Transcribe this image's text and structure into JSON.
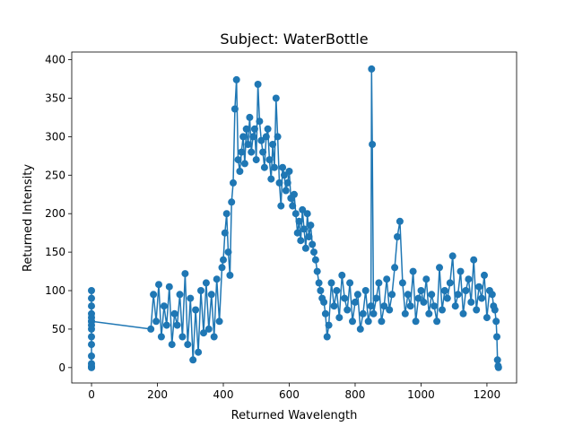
{
  "chart_data": {
    "type": "line",
    "title": "Subject: WaterBottle",
    "xlabel": "Returned Wavelength",
    "ylabel": "Returned Intensity",
    "xlim": [
      -60,
      1290
    ],
    "ylim": [
      -20,
      410
    ],
    "xticks": [
      0,
      200,
      400,
      600,
      800,
      1000,
      1200
    ],
    "yticks": [
      0,
      50,
      100,
      150,
      200,
      250,
      300,
      350,
      400
    ],
    "grid": false,
    "legend": "none",
    "marker": "circle",
    "series": [
      {
        "color": "#1f77b4",
        "x": [
          0,
          0,
          0,
          0,
          0,
          0,
          0,
          0,
          0,
          0,
          0,
          0,
          0,
          0,
          0,
          0,
          180,
          188,
          196,
          204,
          212,
          220,
          228,
          236,
          244,
          252,
          260,
          268,
          276,
          284,
          292,
          300,
          308,
          316,
          324,
          332,
          340,
          348,
          356,
          364,
          372,
          380,
          388,
          396,
          400,
          405,
          410,
          415,
          420,
          425,
          430,
          435,
          440,
          445,
          450,
          455,
          460,
          465,
          470,
          475,
          480,
          485,
          490,
          495,
          500,
          505,
          510,
          515,
          520,
          525,
          530,
          535,
          540,
          545,
          550,
          555,
          560,
          565,
          570,
          575,
          580,
          585,
          590,
          595,
          600,
          605,
          610,
          615,
          620,
          625,
          630,
          635,
          640,
          645,
          650,
          655,
          660,
          665,
          670,
          675,
          680,
          685,
          690,
          695,
          700,
          705,
          710,
          715,
          720,
          728,
          736,
          744,
          752,
          760,
          768,
          776,
          784,
          792,
          800,
          808,
          816,
          824,
          832,
          840,
          848,
          850,
          852,
          856,
          864,
          872,
          880,
          888,
          896,
          904,
          912,
          920,
          928,
          936,
          944,
          952,
          960,
          968,
          976,
          984,
          992,
          1000,
          1008,
          1016,
          1024,
          1032,
          1040,
          1048,
          1056,
          1064,
          1072,
          1080,
          1088,
          1096,
          1104,
          1112,
          1120,
          1128,
          1136,
          1144,
          1152,
          1160,
          1168,
          1176,
          1184,
          1192,
          1200,
          1208,
          1216,
          1220,
          1224,
          1228,
          1230,
          1232,
          1234,
          1235
        ],
        "y": [
          0,
          2,
          5,
          15,
          30,
          40,
          50,
          55,
          60,
          65,
          70,
          80,
          90,
          100,
          0,
          60,
          50,
          95,
          60,
          108,
          40,
          80,
          55,
          105,
          30,
          70,
          55,
          95,
          40,
          122,
          30,
          90,
          10,
          75,
          20,
          100,
          45,
          110,
          50,
          95,
          40,
          115,
          60,
          130,
          140,
          175,
          200,
          150,
          120,
          215,
          240,
          336,
          374,
          270,
          255,
          280,
          300,
          265,
          310,
          290,
          325,
          280,
          300,
          310,
          270,
          368,
          320,
          295,
          280,
          260,
          300,
          310,
          270,
          245,
          290,
          260,
          350,
          300,
          240,
          210,
          260,
          250,
          230,
          240,
          255,
          220,
          210,
          225,
          200,
          175,
          190,
          165,
          205,
          180,
          155,
          200,
          170,
          185,
          160,
          150,
          140,
          125,
          110,
          100,
          90,
          85,
          70,
          40,
          55,
          110,
          80,
          100,
          65,
          120,
          90,
          75,
          110,
          60,
          85,
          95,
          50,
          70,
          100,
          60,
          80,
          388,
          290,
          70,
          90,
          110,
          60,
          80,
          115,
          75,
          95,
          130,
          170,
          190,
          110,
          70,
          95,
          80,
          125,
          60,
          90,
          100,
          85,
          115,
          70,
          95,
          80,
          60,
          130,
          75,
          100,
          90,
          110,
          145,
          80,
          95,
          125,
          70,
          100,
          115,
          85,
          140,
          75,
          105,
          90,
          120,
          65,
          100,
          95,
          80,
          75,
          60,
          40,
          10,
          2,
          0
        ]
      }
    ]
  }
}
